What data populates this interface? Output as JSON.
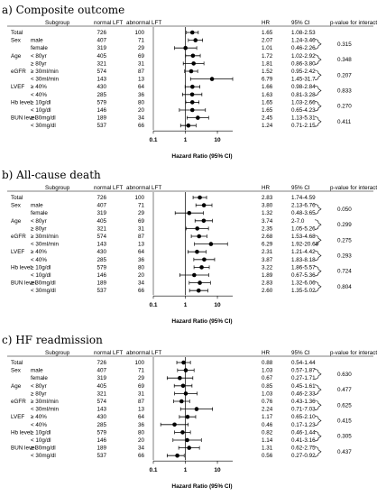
{
  "chart_data": [
    {
      "type": "forest",
      "title": "a) Composite outcome",
      "headers": {
        "subgroup": "Subgroup",
        "normal": "normal LFT",
        "abnormal": "abnormal LFT",
        "hr": "HR",
        "ci": "95% CI",
        "p": "p-value for interaction"
      },
      "xlabel": "Hazard Ratio (95% CI)",
      "ticks": [
        "0.1",
        "1",
        "10"
      ],
      "xlim": [
        0.1,
        30
      ],
      "rows": [
        {
          "group": "Total",
          "level": "",
          "normal": "726",
          "abnormal": "100",
          "hr": 1.65,
          "ci_text": "1.08-2.53",
          "lo": 1.08,
          "hi": 2.53
        },
        {
          "group": "Sex",
          "level": "male",
          "normal": "407",
          "abnormal": "71",
          "hr": 2.07,
          "ci_text": "1.24-3.46",
          "lo": 1.24,
          "hi": 3.46
        },
        {
          "group": "",
          "level": "female",
          "normal": "319",
          "abnormal": "29",
          "hr": 1.01,
          "ci_text": "0.46-2.26",
          "lo": 0.46,
          "hi": 2.26
        },
        {
          "group": "Age",
          "level": "< 80yr",
          "normal": "405",
          "abnormal": "69",
          "hr": 1.72,
          "ci_text": "1.02-2.92",
          "lo": 1.02,
          "hi": 2.92
        },
        {
          "group": "",
          "level": "≥ 80yr",
          "normal": "321",
          "abnormal": "31",
          "hr": 1.81,
          "ci_text": "0.86-3.80",
          "lo": 0.86,
          "hi": 3.8
        },
        {
          "group": "eGFR",
          "level": "≥ 30ml/min",
          "normal": "574",
          "abnormal": "87",
          "hr": 1.52,
          "ci_text": "0.95-2.42",
          "lo": 0.95,
          "hi": 2.42
        },
        {
          "group": "",
          "level": "< 30ml/min",
          "normal": "143",
          "abnormal": "13",
          "hr": 6.79,
          "ci_text": "1.45-31.7",
          "lo": 1.45,
          "hi": 31.7
        },
        {
          "group": "LVEF",
          "level": "≥ 40%",
          "normal": "430",
          "abnormal": "64",
          "hr": 1.66,
          "ci_text": "0.98-2.84",
          "lo": 0.98,
          "hi": 2.84
        },
        {
          "group": "",
          "level": "< 40%",
          "normal": "285",
          "abnormal": "36",
          "hr": 1.63,
          "ci_text": "0.81-3.28",
          "lo": 0.81,
          "hi": 3.28
        },
        {
          "group": "Hb level",
          "level": "≥ 10g/dl",
          "normal": "579",
          "abnormal": "80",
          "hr": 1.65,
          "ci_text": "1.03-2.66",
          "lo": 1.03,
          "hi": 2.66
        },
        {
          "group": "",
          "level": "< 10g/dl",
          "normal": "146",
          "abnormal": "20",
          "hr": 1.65,
          "ci_text": "0.65-4.23",
          "lo": 0.65,
          "hi": 4.23
        },
        {
          "group": "BUN level",
          "level": "≥ 30mg/dl",
          "normal": "189",
          "abnormal": "34",
          "hr": 2.45,
          "ci_text": "1.13-5.31",
          "lo": 1.13,
          "hi": 5.31
        },
        {
          "group": "",
          "level": "< 30mg/dl",
          "normal": "537",
          "abnormal": "66",
          "hr": 1.24,
          "ci_text": "0.71-2.15",
          "lo": 0.71,
          "hi": 2.15
        }
      ],
      "pvalues": [
        "0.315",
        "0.348",
        "0.207",
        "0.833",
        "0.270",
        "0.411"
      ]
    },
    {
      "type": "forest",
      "title": "b) All-cause death",
      "headers": {
        "subgroup": "Subgroup",
        "normal": "normal LFT",
        "abnormal": "abnormal LFT",
        "hr": "HR",
        "ci": "95% CI",
        "p": "p-value for interaction"
      },
      "xlabel": "Hazard Ratio (95% CI)",
      "ticks": [
        "0.1",
        "1",
        "10"
      ],
      "xlim": [
        0.1,
        30
      ],
      "rows": [
        {
          "group": "Total",
          "level": "",
          "normal": "726",
          "abnormal": "100",
          "hr": 2.83,
          "ci_text": "1.74-4.59",
          "lo": 1.74,
          "hi": 4.59
        },
        {
          "group": "Sex",
          "level": "male",
          "normal": "407",
          "abnormal": "71",
          "hr": 3.8,
          "ci_text": "2.13-6.76",
          "lo": 2.13,
          "hi": 6.76
        },
        {
          "group": "",
          "level": "female",
          "normal": "319",
          "abnormal": "29",
          "hr": 1.32,
          "ci_text": "0.48-3.65",
          "lo": 0.48,
          "hi": 3.65
        },
        {
          "group": "Age",
          "level": "< 80yr",
          "normal": "405",
          "abnormal": "69",
          "hr": 3.74,
          "ci_text": "2-7.0",
          "lo": 2.0,
          "hi": 7.0
        },
        {
          "group": "",
          "level": "≥ 80yr",
          "normal": "321",
          "abnormal": "31",
          "hr": 2.35,
          "ci_text": "1.05-5.26",
          "lo": 1.05,
          "hi": 5.26
        },
        {
          "group": "eGFR",
          "level": "≥ 30ml/min",
          "normal": "574",
          "abnormal": "87",
          "hr": 2.68,
          "ci_text": "1.53-4.68",
          "lo": 1.53,
          "hi": 4.68
        },
        {
          "group": "",
          "level": "< 30ml/min",
          "normal": "143",
          "abnormal": "13",
          "hr": 6.29,
          "ci_text": "1.92-20.66",
          "lo": 1.92,
          "hi": 20.66
        },
        {
          "group": "LVEF",
          "level": "≥ 40%",
          "normal": "430",
          "abnormal": "64",
          "hr": 2.31,
          "ci_text": "1.21-4.42",
          "lo": 1.21,
          "hi": 4.42
        },
        {
          "group": "",
          "level": "< 40%",
          "normal": "285",
          "abnormal": "36",
          "hr": 3.87,
          "ci_text": "1.83-8.18",
          "lo": 1.83,
          "hi": 8.18
        },
        {
          "group": "Hb level",
          "level": "≥ 10g/dl",
          "normal": "579",
          "abnormal": "80",
          "hr": 3.22,
          "ci_text": "1.86-5.57",
          "lo": 1.86,
          "hi": 5.57
        },
        {
          "group": "",
          "level": "< 10g/dl",
          "normal": "146",
          "abnormal": "20",
          "hr": 1.89,
          "ci_text": "0.67-5.36",
          "lo": 0.67,
          "hi": 5.36
        },
        {
          "group": "BUN level",
          "level": "≥ 30mg/dl",
          "normal": "189",
          "abnormal": "34",
          "hr": 2.83,
          "ci_text": "1.32-6.06",
          "lo": 1.32,
          "hi": 6.06
        },
        {
          "group": "",
          "level": "< 30mg/dl",
          "normal": "537",
          "abnormal": "66",
          "hr": 2.6,
          "ci_text": "1.35-5.02",
          "lo": 1.35,
          "hi": 5.02
        }
      ],
      "pvalues": [
        "0.050",
        "0.299",
        "0.275",
        "0.293",
        "0.724",
        "0.804"
      ]
    },
    {
      "type": "forest",
      "title": "c) HF readmission",
      "headers": {
        "subgroup": "Subgroup",
        "normal": "normal LFT",
        "abnormal": "abnormal LFT",
        "hr": "HR",
        "ci": "95% CI",
        "p": "p-value for interaction"
      },
      "xlabel": "Hazard Ratio (95% CI)",
      "ticks": [
        "0.1",
        "1",
        "10"
      ],
      "xlim": [
        0.1,
        30
      ],
      "rows": [
        {
          "group": "Total",
          "level": "",
          "normal": "726",
          "abnormal": "100",
          "hr": 0.88,
          "ci_text": "0.54-1.44",
          "lo": 0.54,
          "hi": 1.44
        },
        {
          "group": "Sex",
          "level": "male",
          "normal": "407",
          "abnormal": "71",
          "hr": 1.03,
          "ci_text": "0.57-1.87",
          "lo": 0.57,
          "hi": 1.87
        },
        {
          "group": "",
          "level": "female",
          "normal": "319",
          "abnormal": "29",
          "hr": 0.67,
          "ci_text": "0.27-1.71",
          "lo": 0.27,
          "hi": 1.71
        },
        {
          "group": "Age",
          "level": "< 80yr",
          "normal": "405",
          "abnormal": "69",
          "hr": 0.85,
          "ci_text": "0.45-1.61",
          "lo": 0.45,
          "hi": 1.61
        },
        {
          "group": "",
          "level": "≥ 80yr",
          "normal": "321",
          "abnormal": "31",
          "hr": 1.03,
          "ci_text": "0.46-2.33",
          "lo": 0.46,
          "hi": 2.33
        },
        {
          "group": "eGFR",
          "level": "≥ 30ml/min",
          "normal": "574",
          "abnormal": "87",
          "hr": 0.76,
          "ci_text": "0.43-1.36",
          "lo": 0.43,
          "hi": 1.36
        },
        {
          "group": "",
          "level": "< 30ml/min",
          "normal": "143",
          "abnormal": "13",
          "hr": 2.24,
          "ci_text": "0.71-7.03",
          "lo": 0.71,
          "hi": 7.03
        },
        {
          "group": "LVEF",
          "level": "≥ 40%",
          "normal": "430",
          "abnormal": "64",
          "hr": 1.17,
          "ci_text": "0.65-2.10",
          "lo": 0.65,
          "hi": 2.1
        },
        {
          "group": "",
          "level": "< 40%",
          "normal": "285",
          "abnormal": "36",
          "hr": 0.46,
          "ci_text": "0.17-1.23",
          "lo": 0.17,
          "hi": 1.23
        },
        {
          "group": "Hb level",
          "level": "≥ 10g/dl",
          "normal": "579",
          "abnormal": "80",
          "hr": 0.82,
          "ci_text": "0.46-1.44",
          "lo": 0.46,
          "hi": 1.44
        },
        {
          "group": "",
          "level": "< 10g/dl",
          "normal": "146",
          "abnormal": "20",
          "hr": 1.14,
          "ci_text": "0.41-3.16",
          "lo": 0.41,
          "hi": 3.16
        },
        {
          "group": "BUN level",
          "level": "≥ 30mg/dl",
          "normal": "189",
          "abnormal": "34",
          "hr": 1.31,
          "ci_text": "0.62-2.75",
          "lo": 0.62,
          "hi": 2.75
        },
        {
          "group": "",
          "level": "< 30mg/dl",
          "normal": "537",
          "abnormal": "66",
          "hr": 0.56,
          "ci_text": "0.27-0.92",
          "lo": 0.27,
          "hi": 0.92
        }
      ],
      "pvalues": [
        "0.630",
        "0.477",
        "0.625",
        "0.415",
        "0.305",
        "0.437"
      ]
    }
  ]
}
